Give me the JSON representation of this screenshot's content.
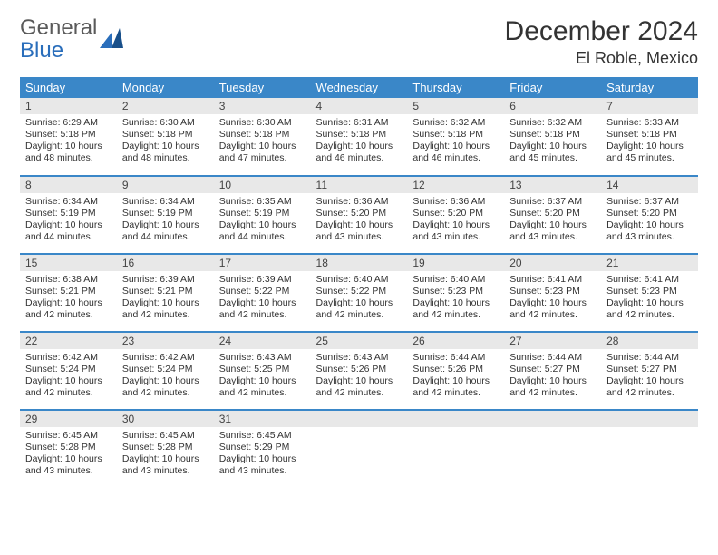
{
  "logo": {
    "part1": "General",
    "part2": "Blue"
  },
  "title": "December 2024",
  "location": "El Roble, Mexico",
  "colors": {
    "header_bg": "#3a87c8",
    "header_text": "#ffffff",
    "daynum_bg": "#e8e8e8",
    "row_border": "#3a87c8",
    "logo_gray": "#5a5a5a",
    "logo_blue": "#2a6ebb"
  },
  "weekdays": [
    "Sunday",
    "Monday",
    "Tuesday",
    "Wednesday",
    "Thursday",
    "Friday",
    "Saturday"
  ],
  "days": [
    {
      "n": "1",
      "sr": "Sunrise: 6:29 AM",
      "ss": "Sunset: 5:18 PM",
      "dl": "Daylight: 10 hours and 48 minutes."
    },
    {
      "n": "2",
      "sr": "Sunrise: 6:30 AM",
      "ss": "Sunset: 5:18 PM",
      "dl": "Daylight: 10 hours and 48 minutes."
    },
    {
      "n": "3",
      "sr": "Sunrise: 6:30 AM",
      "ss": "Sunset: 5:18 PM",
      "dl": "Daylight: 10 hours and 47 minutes."
    },
    {
      "n": "4",
      "sr": "Sunrise: 6:31 AM",
      "ss": "Sunset: 5:18 PM",
      "dl": "Daylight: 10 hours and 46 minutes."
    },
    {
      "n": "5",
      "sr": "Sunrise: 6:32 AM",
      "ss": "Sunset: 5:18 PM",
      "dl": "Daylight: 10 hours and 46 minutes."
    },
    {
      "n": "6",
      "sr": "Sunrise: 6:32 AM",
      "ss": "Sunset: 5:18 PM",
      "dl": "Daylight: 10 hours and 45 minutes."
    },
    {
      "n": "7",
      "sr": "Sunrise: 6:33 AM",
      "ss": "Sunset: 5:18 PM",
      "dl": "Daylight: 10 hours and 45 minutes."
    },
    {
      "n": "8",
      "sr": "Sunrise: 6:34 AM",
      "ss": "Sunset: 5:19 PM",
      "dl": "Daylight: 10 hours and 44 minutes."
    },
    {
      "n": "9",
      "sr": "Sunrise: 6:34 AM",
      "ss": "Sunset: 5:19 PM",
      "dl": "Daylight: 10 hours and 44 minutes."
    },
    {
      "n": "10",
      "sr": "Sunrise: 6:35 AM",
      "ss": "Sunset: 5:19 PM",
      "dl": "Daylight: 10 hours and 44 minutes."
    },
    {
      "n": "11",
      "sr": "Sunrise: 6:36 AM",
      "ss": "Sunset: 5:20 PM",
      "dl": "Daylight: 10 hours and 43 minutes."
    },
    {
      "n": "12",
      "sr": "Sunrise: 6:36 AM",
      "ss": "Sunset: 5:20 PM",
      "dl": "Daylight: 10 hours and 43 minutes."
    },
    {
      "n": "13",
      "sr": "Sunrise: 6:37 AM",
      "ss": "Sunset: 5:20 PM",
      "dl": "Daylight: 10 hours and 43 minutes."
    },
    {
      "n": "14",
      "sr": "Sunrise: 6:37 AM",
      "ss": "Sunset: 5:20 PM",
      "dl": "Daylight: 10 hours and 43 minutes."
    },
    {
      "n": "15",
      "sr": "Sunrise: 6:38 AM",
      "ss": "Sunset: 5:21 PM",
      "dl": "Daylight: 10 hours and 42 minutes."
    },
    {
      "n": "16",
      "sr": "Sunrise: 6:39 AM",
      "ss": "Sunset: 5:21 PM",
      "dl": "Daylight: 10 hours and 42 minutes."
    },
    {
      "n": "17",
      "sr": "Sunrise: 6:39 AM",
      "ss": "Sunset: 5:22 PM",
      "dl": "Daylight: 10 hours and 42 minutes."
    },
    {
      "n": "18",
      "sr": "Sunrise: 6:40 AM",
      "ss": "Sunset: 5:22 PM",
      "dl": "Daylight: 10 hours and 42 minutes."
    },
    {
      "n": "19",
      "sr": "Sunrise: 6:40 AM",
      "ss": "Sunset: 5:23 PM",
      "dl": "Daylight: 10 hours and 42 minutes."
    },
    {
      "n": "20",
      "sr": "Sunrise: 6:41 AM",
      "ss": "Sunset: 5:23 PM",
      "dl": "Daylight: 10 hours and 42 minutes."
    },
    {
      "n": "21",
      "sr": "Sunrise: 6:41 AM",
      "ss": "Sunset: 5:23 PM",
      "dl": "Daylight: 10 hours and 42 minutes."
    },
    {
      "n": "22",
      "sr": "Sunrise: 6:42 AM",
      "ss": "Sunset: 5:24 PM",
      "dl": "Daylight: 10 hours and 42 minutes."
    },
    {
      "n": "23",
      "sr": "Sunrise: 6:42 AM",
      "ss": "Sunset: 5:24 PM",
      "dl": "Daylight: 10 hours and 42 minutes."
    },
    {
      "n": "24",
      "sr": "Sunrise: 6:43 AM",
      "ss": "Sunset: 5:25 PM",
      "dl": "Daylight: 10 hours and 42 minutes."
    },
    {
      "n": "25",
      "sr": "Sunrise: 6:43 AM",
      "ss": "Sunset: 5:26 PM",
      "dl": "Daylight: 10 hours and 42 minutes."
    },
    {
      "n": "26",
      "sr": "Sunrise: 6:44 AM",
      "ss": "Sunset: 5:26 PM",
      "dl": "Daylight: 10 hours and 42 minutes."
    },
    {
      "n": "27",
      "sr": "Sunrise: 6:44 AM",
      "ss": "Sunset: 5:27 PM",
      "dl": "Daylight: 10 hours and 42 minutes."
    },
    {
      "n": "28",
      "sr": "Sunrise: 6:44 AM",
      "ss": "Sunset: 5:27 PM",
      "dl": "Daylight: 10 hours and 42 minutes."
    },
    {
      "n": "29",
      "sr": "Sunrise: 6:45 AM",
      "ss": "Sunset: 5:28 PM",
      "dl": "Daylight: 10 hours and 43 minutes."
    },
    {
      "n": "30",
      "sr": "Sunrise: 6:45 AM",
      "ss": "Sunset: 5:28 PM",
      "dl": "Daylight: 10 hours and 43 minutes."
    },
    {
      "n": "31",
      "sr": "Sunrise: 6:45 AM",
      "ss": "Sunset: 5:29 PM",
      "dl": "Daylight: 10 hours and 43 minutes."
    }
  ]
}
